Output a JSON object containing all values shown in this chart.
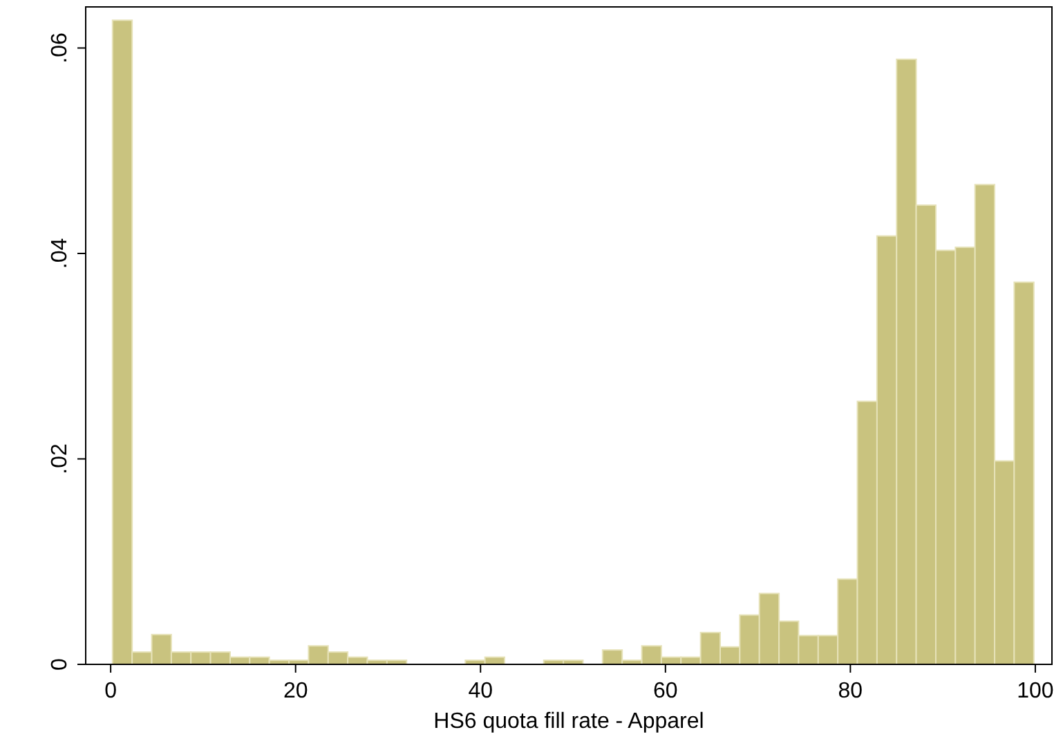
{
  "chart_data": {
    "type": "histogram",
    "xlabel": "HS6 quota fill rate - Apparel",
    "bins": [
      0.2,
      2.32,
      4.44,
      6.56,
      8.68,
      10.8,
      12.92,
      15.04,
      17.16,
      19.28,
      21.4,
      23.52,
      25.64,
      27.76,
      29.88,
      32,
      34.12,
      36.24,
      38.36,
      40.48,
      42.6,
      44.72,
      46.84,
      48.96,
      51.08,
      53.2,
      55.32,
      57.44,
      59.56,
      61.68,
      63.8,
      65.92,
      68.04,
      70.16,
      72.28,
      74.4,
      76.52,
      78.64,
      80.76,
      82.88,
      85,
      87.12,
      89.24,
      91.36,
      93.48,
      95.6,
      97.72,
      99.84
    ],
    "values": [
      0.0627,
      0.0012,
      0.0029,
      0.0012,
      0.0012,
      0.0012,
      0.0007,
      0.0007,
      0.0004,
      0.0004,
      0.0018,
      0.0012,
      0.0007,
      0.0004,
      0.0004,
      0,
      0,
      0,
      0.0004,
      0.0007,
      0,
      0,
      0.0004,
      0.0004,
      0,
      0.0014,
      0.0004,
      0.0018,
      0.0007,
      0.0007,
      0.0031,
      0.0017,
      0.0048,
      0.0069,
      0.0042,
      0.0028,
      0.0028,
      0.0083,
      0.0256,
      0.0417,
      0.0589,
      0.0447,
      0.0403,
      0.0406,
      0.0467,
      0.0198,
      0.0372
    ],
    "color": "#c9c37f",
    "xlim": [
      -2.7,
      101.8
    ],
    "ylim": [
      0,
      0.064
    ],
    "xticks": [
      0,
      20,
      40,
      60,
      80,
      100
    ],
    "yticks": [
      {
        "value": 0,
        "label": "0"
      },
      {
        "value": 0.02,
        "label": ".02"
      },
      {
        "value": 0.04,
        "label": ".04"
      },
      {
        "value": 0.06,
        "label": ".06"
      }
    ],
    "grid": false
  }
}
